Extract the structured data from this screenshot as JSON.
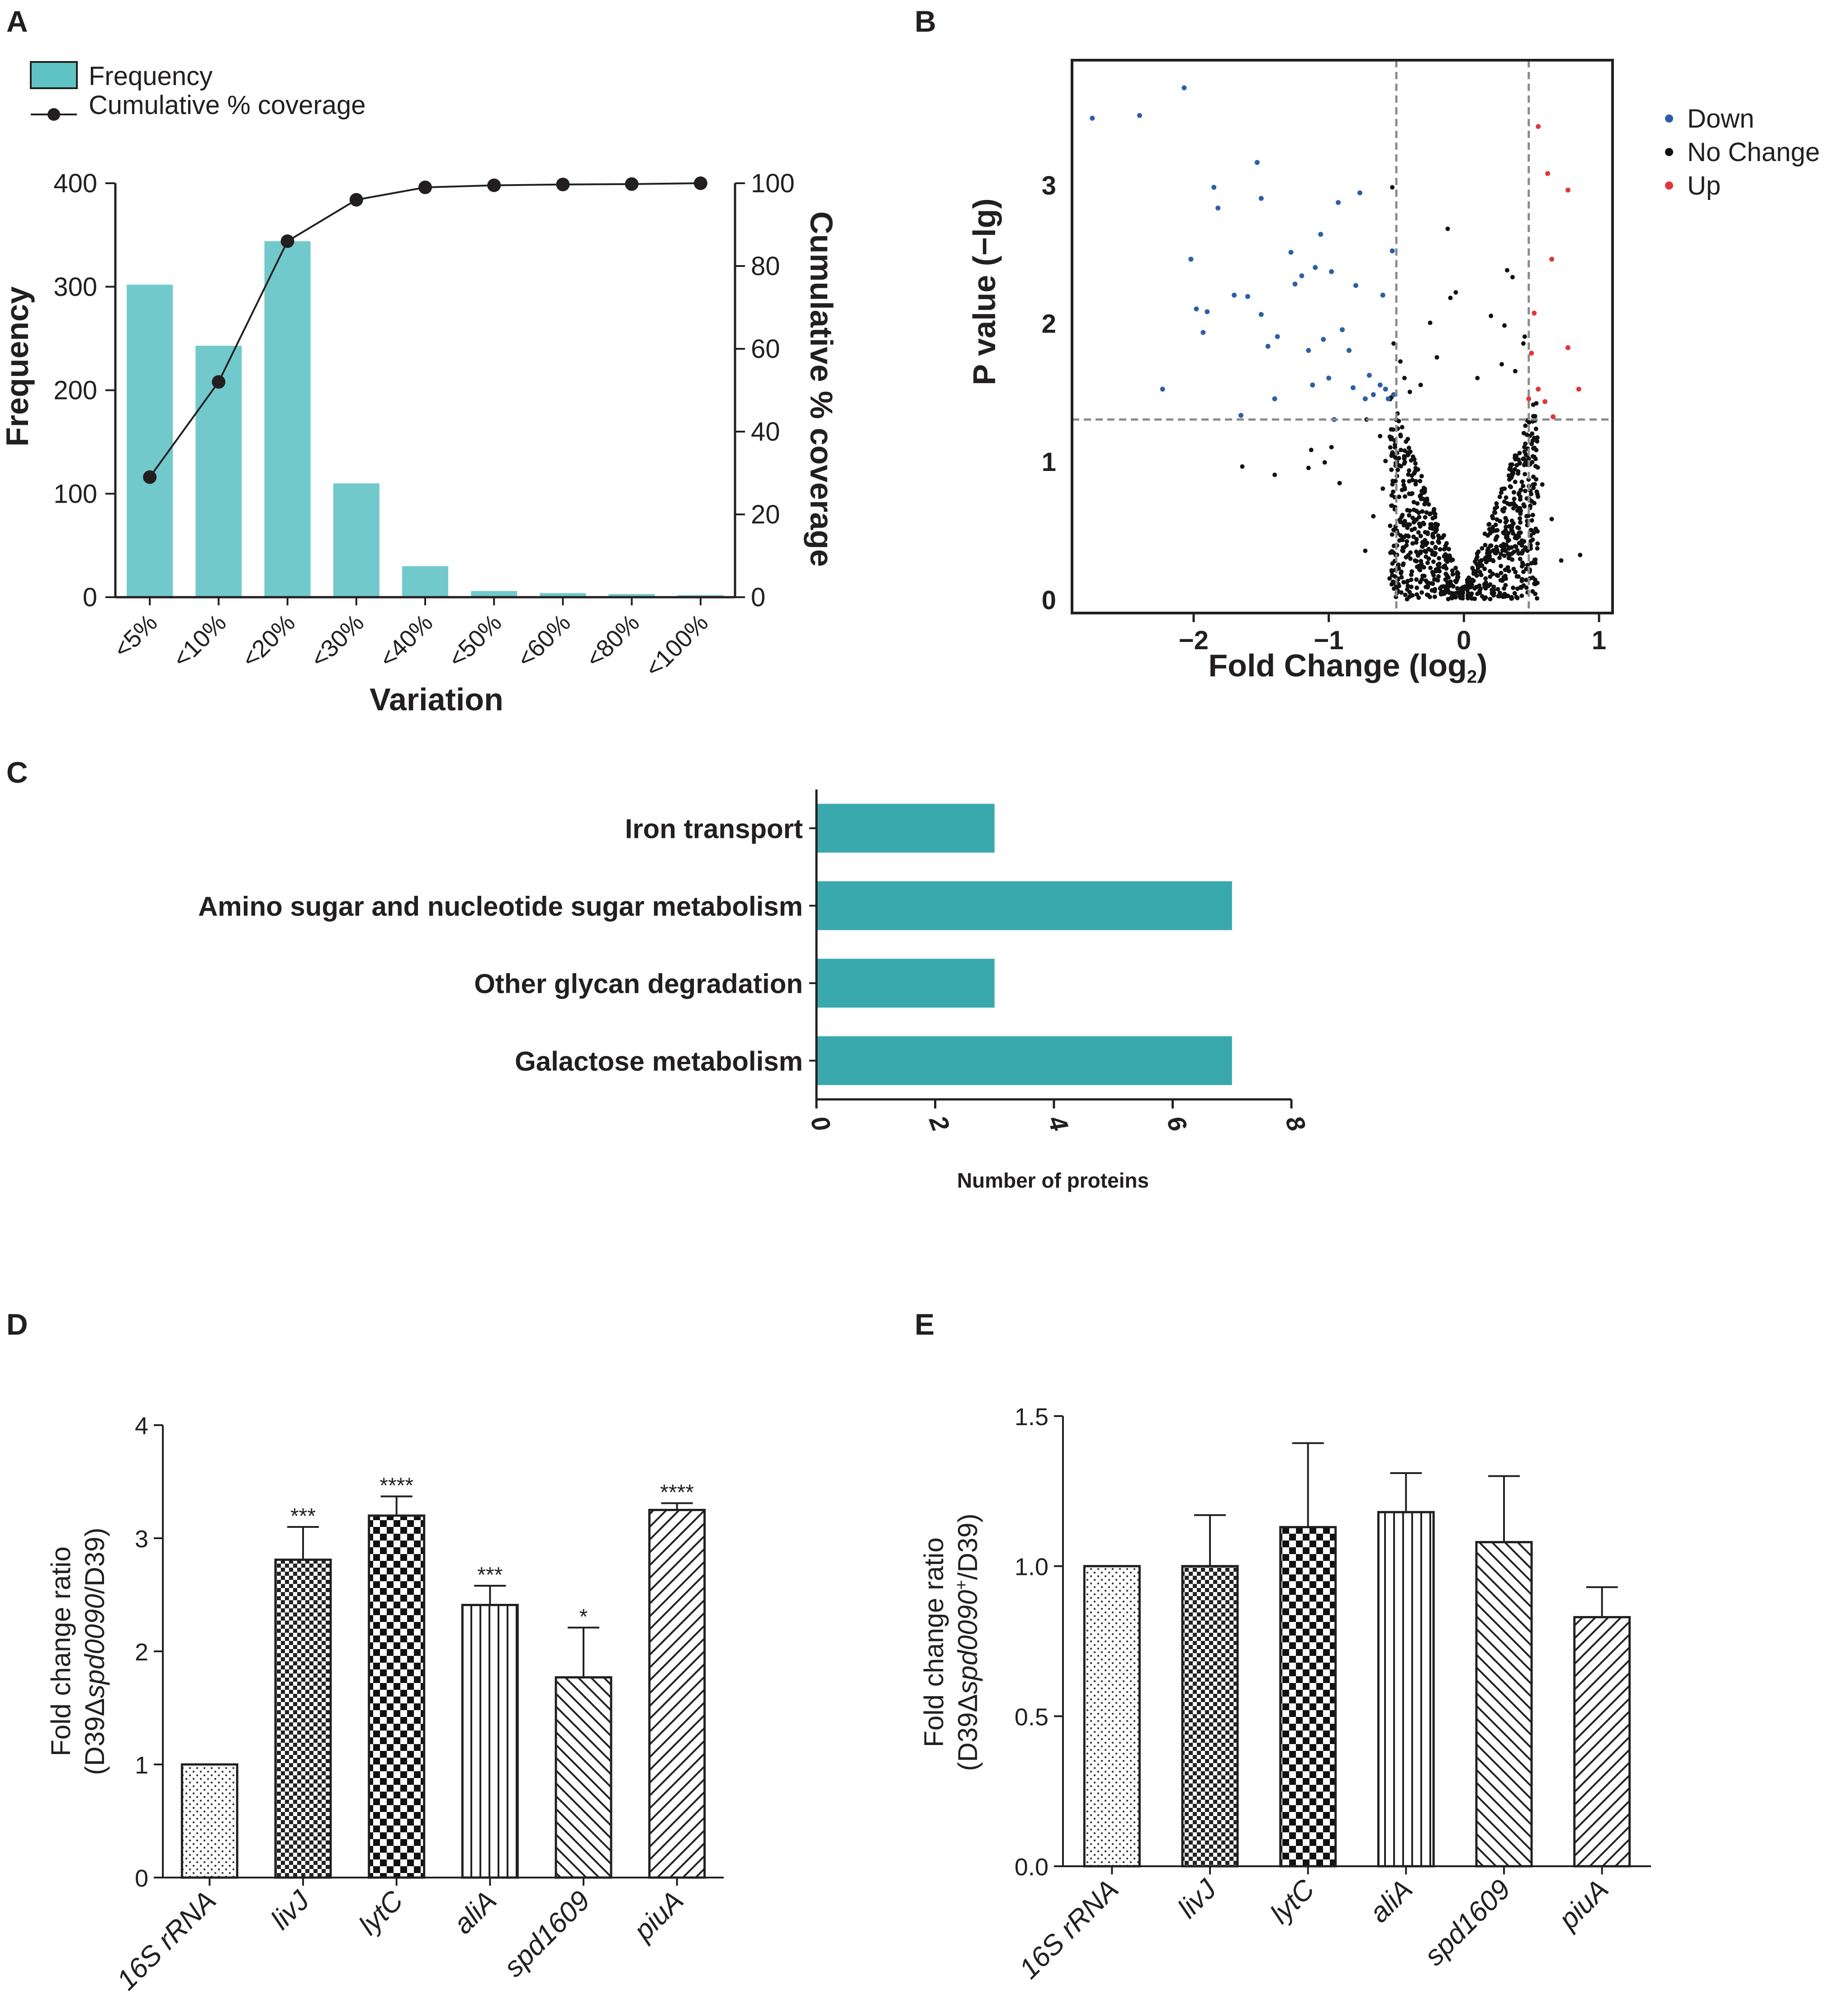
{
  "colors": {
    "teal_light": "#72c9cb",
    "teal": "#3aa9ae",
    "down": "#2e5fa6",
    "up": "#e0383b",
    "nochange": "#111111",
    "guide": "#8a8a8a"
  },
  "panels": {
    "a": "A",
    "b": "B",
    "c": "C",
    "d": "D",
    "e": "E"
  },
  "chart_data": [
    {
      "panel": "A",
      "type": "bar",
      "categories": [
        "<5%",
        "<10%",
        "<20%",
        "<30%",
        "<40%",
        "<50%",
        "<60%",
        "<80%",
        "<100%"
      ],
      "series": [
        {
          "name": "Frequency",
          "values": [
            302,
            243,
            344,
            110,
            30,
            6,
            4,
            3,
            2
          ],
          "axis": "left"
        },
        {
          "name": "Cumulative % coverage",
          "type": "line",
          "values": [
            29,
            52,
            86,
            96,
            99,
            99.5,
            99.7,
            99.8,
            100
          ],
          "axis": "right"
        }
      ],
      "legend": [
        "Frequency",
        "Cumulative % coverage"
      ],
      "xlabel": "Variation",
      "ylabel": "Frequency",
      "y2label": "Cumulative % coverage",
      "ylim": [
        0,
        400
      ],
      "yticks": [
        "0",
        "100",
        "200",
        "300",
        "400"
      ],
      "y2lim": [
        0,
        100
      ],
      "y2ticks": [
        "0",
        "20",
        "40",
        "60",
        "80",
        "100"
      ]
    },
    {
      "panel": "B",
      "type": "scatter",
      "xlabel": "Fold Change (log",
      "xlabel_sub": "2",
      "xlabel_end": ")",
      "ylabel": "P value (−lg)",
      "xlim": [
        -2.9,
        1.1
      ],
      "ylim": [
        -0.1,
        3.9
      ],
      "xticks": [
        -2,
        -1,
        0,
        1
      ],
      "xtick_labels": [
        "−2",
        "−1",
        "0",
        "1"
      ],
      "yticks": [
        0,
        1,
        2,
        3
      ],
      "ytick_labels": [
        "0",
        "1",
        "2",
        "3"
      ],
      "thresholds": {
        "fc": [
          -0.5,
          0.48
        ],
        "p": 1.3
      },
      "legend": [
        "Down",
        "No Change",
        "Up"
      ],
      "down_points": [
        [
          -2.75,
          3.48
        ],
        [
          -2.4,
          3.5
        ],
        [
          -2.07,
          3.7
        ],
        [
          -2.23,
          1.52
        ],
        [
          -2.02,
          2.46
        ],
        [
          -1.98,
          2.1
        ],
        [
          -1.93,
          1.93
        ],
        [
          -1.9,
          2.08
        ],
        [
          -1.85,
          2.98
        ],
        [
          -1.82,
          2.83
        ],
        [
          -1.6,
          2.19
        ],
        [
          -1.7,
          2.2
        ],
        [
          -1.53,
          3.16
        ],
        [
          -1.5,
          2.9
        ],
        [
          -1.5,
          2.06
        ],
        [
          -1.45,
          1.83
        ],
        [
          -1.4,
          1.45
        ],
        [
          -1.65,
          1.33
        ],
        [
          -1.28,
          2.51
        ],
        [
          -1.25,
          2.28
        ],
        [
          -1.2,
          2.34
        ],
        [
          -1.15,
          1.8
        ],
        [
          -1.1,
          2.4
        ],
        [
          -1.06,
          2.64
        ],
        [
          -1.04,
          1.88
        ],
        [
          -1.0,
          1.6
        ],
        [
          -0.98,
          2.37
        ],
        [
          -0.96,
          1.3
        ],
        [
          -0.93,
          2.87
        ],
        [
          -0.9,
          1.95
        ],
        [
          -0.85,
          1.8
        ],
        [
          -0.82,
          1.53
        ],
        [
          -0.8,
          2.27
        ],
        [
          -0.77,
          2.94
        ],
        [
          -0.73,
          1.45
        ],
        [
          -0.7,
          1.62
        ],
        [
          -0.67,
          1.48
        ],
        [
          -0.62,
          1.55
        ],
        [
          -0.6,
          2.2
        ],
        [
          -0.58,
          1.52
        ],
        [
          -0.56,
          1.45
        ],
        [
          -0.53,
          2.52
        ],
        [
          -0.52,
          1.48
        ],
        [
          -1.38,
          1.9
        ],
        [
          -1.12,
          1.55
        ]
      ],
      "up_points": [
        [
          0.55,
          3.42
        ],
        [
          0.62,
          3.08
        ],
        [
          0.77,
          2.96
        ],
        [
          0.65,
          2.46
        ],
        [
          0.5,
          1.78
        ],
        [
          0.55,
          1.52
        ],
        [
          0.48,
          1.45
        ],
        [
          0.6,
          1.43
        ],
        [
          0.66,
          1.32
        ],
        [
          0.85,
          1.52
        ],
        [
          0.77,
          1.82
        ],
        [
          0.52,
          2.07
        ]
      ],
      "nochange_points": [
        [
          -0.53,
          2.98
        ],
        [
          -0.12,
          2.68
        ],
        [
          0.32,
          2.38
        ],
        [
          -1.64,
          0.96
        ],
        [
          -1.4,
          0.9
        ],
        [
          -1.15,
          0.95
        ],
        [
          -1.13,
          1.08
        ],
        [
          -1.03,
          0.99
        ],
        [
          -0.98,
          1.1
        ],
        [
          -0.92,
          0.84
        ],
        [
          -0.55,
          0.15
        ],
        [
          -0.52,
          1.85
        ],
        [
          -0.47,
          1.72
        ],
        [
          -0.44,
          1.6
        ],
        [
          -0.4,
          1.5
        ],
        [
          -0.06,
          2.22
        ],
        [
          -0.1,
          2.18
        ],
        [
          0.36,
          2.33
        ],
        [
          -0.25,
          2.0
        ],
        [
          0.2,
          2.05
        ],
        [
          0.3,
          1.98
        ],
        [
          0.45,
          1.9
        ],
        [
          -0.2,
          1.75
        ],
        [
          0.28,
          1.7
        ],
        [
          0.38,
          1.65
        ],
        [
          0.44,
          1.85
        ],
        [
          0.1,
          1.6
        ],
        [
          -0.32,
          1.55
        ],
        [
          0.86,
          0.32
        ],
        [
          0.72,
          0.28
        ],
        [
          0.65,
          0.58
        ],
        [
          0.58,
          0.83
        ],
        [
          0.52,
          1.03
        ],
        [
          -0.62,
          1.18
        ],
        [
          -0.58,
          1.0
        ],
        [
          -0.6,
          0.8
        ],
        [
          -0.67,
          0.6
        ],
        [
          -0.72,
          1.3
        ],
        [
          -0.73,
          0.35
        ]
      ],
      "nochange_cloud": {
        "count": 820,
        "x_center": 0.0,
        "x_spread": 0.55,
        "y_max": 1.55
      }
    },
    {
      "panel": "C",
      "type": "bar",
      "orientation": "horizontal",
      "categories": [
        "Iron transport",
        "Amino sugar and nucleotide sugar metabolism",
        "Other glycan degradation",
        "Galactose metabolism"
      ],
      "values": [
        3,
        7,
        3,
        7
      ],
      "xlabel": "Number of proteins",
      "xlim": [
        0,
        8
      ],
      "xticks": [
        "0",
        "2",
        "4",
        "6",
        "8"
      ]
    },
    {
      "panel": "D",
      "type": "bar",
      "categories": [
        "16S rRNA",
        "livJ",
        "lytC",
        "aliA",
        "spd1609",
        "piuA"
      ],
      "values": [
        1.0,
        2.81,
        3.2,
        2.41,
        1.77,
        3.25
      ],
      "errors": [
        0,
        0.29,
        0.17,
        0.17,
        0.44,
        0.06
      ],
      "significance": [
        "",
        "***",
        "****",
        "***",
        "*",
        "****"
      ],
      "ylabel_line1": "Fold change ratio",
      "ylabel_line2_a": "(D39Δ",
      "ylabel_line2_b": "spd0090",
      "ylabel_line2_c": "/D39)",
      "ylim": [
        0,
        4
      ],
      "yticks": [
        "0",
        "1",
        "2",
        "3",
        "4"
      ]
    },
    {
      "panel": "E",
      "type": "bar",
      "categories": [
        "16S rRNA",
        "livJ",
        "lytC",
        "aliA",
        "spd1609",
        "piuA"
      ],
      "values": [
        1.0,
        1.0,
        1.13,
        1.18,
        1.08,
        0.83
      ],
      "errors": [
        0,
        0.17,
        0.28,
        0.13,
        0.22,
        0.1
      ],
      "ylabel_line1": "Fold change ratio",
      "ylabel_line2_a": "(D39Δ",
      "ylabel_line2_b": "spd0090",
      "ylabel_line2_sup": "+",
      "ylabel_line2_c": "/D39)",
      "ylim": [
        0,
        1.5
      ],
      "yticks": [
        "0.0",
        "0.5",
        "1.0",
        "1.5"
      ]
    }
  ]
}
